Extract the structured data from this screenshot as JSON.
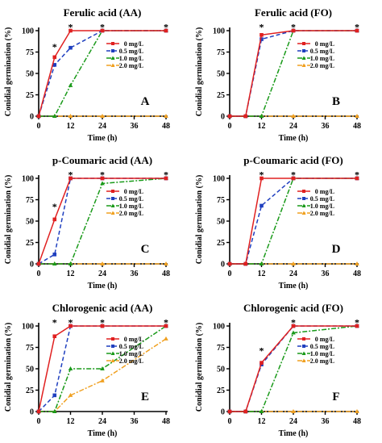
{
  "figure": {
    "x_ticks": [
      "0",
      "12",
      "24",
      "36",
      "48"
    ],
    "y_ticks": [
      "0",
      "25",
      "50",
      "75",
      "100"
    ],
    "legend": [
      "0 mg/L",
      "0.5 mg/L",
      "1.0 mg/L",
      "2.0 mg/L"
    ],
    "colors": [
      "#e02020",
      "#1f3fbf",
      "#1a9a1a",
      "#f0a020"
    ]
  },
  "chart_data": [
    {
      "type": "line",
      "letter": "A",
      "title": "Ferulic acid (AA)",
      "xlabel": "Time (h)",
      "ylabel": "Conidial germination (%)",
      "xlim": [
        0,
        48
      ],
      "ylim": [
        0,
        100
      ],
      "x": [
        0,
        6,
        12,
        24,
        48
      ],
      "series": [
        {
          "name": "0 mg/L",
          "values": [
            0,
            69,
            100,
            100,
            100
          ]
        },
        {
          "name": "0.5 mg/L",
          "values": [
            0,
            60,
            80,
            100,
            100
          ]
        },
        {
          "name": "1.0 mg/L",
          "values": [
            0,
            0,
            36,
            100,
            100
          ]
        },
        {
          "name": "2.0 mg/L",
          "values": [
            0,
            0,
            0,
            0,
            0
          ]
        }
      ],
      "star_x": [
        6,
        12,
        24,
        48
      ],
      "star_y": [
        82,
        105,
        105,
        105
      ]
    },
    {
      "type": "line",
      "letter": "B",
      "title": "Ferulic acid (FO)",
      "xlabel": "Time (h)",
      "ylabel": "Conidial germination (%)",
      "xlim": [
        0,
        48
      ],
      "ylim": [
        0,
        100
      ],
      "x": [
        0,
        6,
        12,
        24,
        48
      ],
      "series": [
        {
          "name": "0 mg/L",
          "values": [
            0,
            0,
            95,
            100,
            100
          ]
        },
        {
          "name": "0.5 mg/L",
          "values": [
            0,
            0,
            90,
            100,
            100
          ]
        },
        {
          "name": "1.0 mg/L",
          "values": [
            0,
            0,
            0,
            100,
            100
          ]
        },
        {
          "name": "2.0 mg/L",
          "values": [
            0,
            0,
            0,
            0,
            0
          ]
        }
      ],
      "star_x": [
        12,
        24,
        48
      ],
      "star_y": [
        105,
        105,
        105
      ]
    },
    {
      "type": "line",
      "letter": "C",
      "title": "p-Coumaric acid (AA)",
      "xlabel": "Time (h)",
      "ylabel": "Conidial germination (%)",
      "xlim": [
        0,
        48
      ],
      "ylim": [
        0,
        100
      ],
      "x": [
        0,
        6,
        12,
        24,
        48
      ],
      "series": [
        {
          "name": "0 mg/L",
          "values": [
            0,
            52,
            100,
            100,
            100
          ]
        },
        {
          "name": "0.5 mg/L",
          "values": [
            0,
            11,
            100,
            100,
            100
          ]
        },
        {
          "name": "1.0 mg/L",
          "values": [
            0,
            0,
            0,
            94,
            100
          ]
        },
        {
          "name": "2.0 mg/L",
          "values": [
            0,
            0,
            0,
            0,
            0
          ]
        }
      ],
      "star_x": [
        6,
        12,
        24,
        48
      ],
      "star_y": [
        68,
        105,
        105,
        105
      ]
    },
    {
      "type": "line",
      "letter": "D",
      "title": "p-Coumaric acid (FO)",
      "xlabel": "Time (h)",
      "ylabel": "Conidial germination (%)",
      "xlim": [
        0,
        48
      ],
      "ylim": [
        0,
        100
      ],
      "x": [
        0,
        6,
        12,
        24,
        48
      ],
      "series": [
        {
          "name": "0 mg/L",
          "values": [
            0,
            0,
            100,
            100,
            100
          ]
        },
        {
          "name": "0.5 mg/L",
          "values": [
            0,
            0,
            68,
            100,
            100
          ]
        },
        {
          "name": "1.0 mg/L",
          "values": [
            0,
            0,
            0,
            100,
            100
          ]
        },
        {
          "name": "2.0 mg/L",
          "values": [
            0,
            0,
            0,
            0,
            0
          ]
        }
      ],
      "star_x": [
        12,
        24,
        48
      ],
      "star_y": [
        105,
        105,
        105
      ]
    },
    {
      "type": "line",
      "letter": "E",
      "title": "Chlorogenic acid (AA)",
      "xlabel": "Time (h)",
      "ylabel": "Conidial germination (%)",
      "xlim": [
        0,
        48
      ],
      "ylim": [
        0,
        100
      ],
      "x": [
        0,
        6,
        12,
        24,
        48
      ],
      "series": [
        {
          "name": "0 mg/L",
          "values": [
            0,
            88,
            100,
            100,
            100
          ]
        },
        {
          "name": "0.5 mg/L",
          "values": [
            0,
            19,
            100,
            100,
            100
          ]
        },
        {
          "name": "1.0 mg/L",
          "values": [
            0,
            0,
            50,
            50,
            100
          ]
        },
        {
          "name": "2.0 mg/L",
          "values": [
            0,
            0,
            19,
            36,
            85
          ]
        }
      ],
      "star_x": [
        6,
        12,
        24,
        48
      ],
      "star_y": [
        105,
        105,
        105,
        105
      ]
    },
    {
      "type": "line",
      "letter": "F",
      "title": "Chlorogenic acid (FO)",
      "xlabel": "Time (h)",
      "ylabel": "Conidial germination (%)",
      "xlim": [
        0,
        48
      ],
      "ylim": [
        0,
        100
      ],
      "x": [
        0,
        6,
        12,
        24,
        48
      ],
      "series": [
        {
          "name": "0 mg/L",
          "values": [
            0,
            0,
            57,
            100,
            100
          ]
        },
        {
          "name": "0.5 mg/L",
          "values": [
            0,
            0,
            55,
            100,
            100
          ]
        },
        {
          "name": "1.0 mg/L",
          "values": [
            0,
            0,
            0,
            92,
            100
          ]
        },
        {
          "name": "2.0 mg/L",
          "values": [
            0,
            0,
            0,
            0,
            0
          ]
        }
      ],
      "star_x": [
        12,
        24,
        48
      ],
      "star_y": [
        72,
        105,
        105
      ]
    }
  ]
}
